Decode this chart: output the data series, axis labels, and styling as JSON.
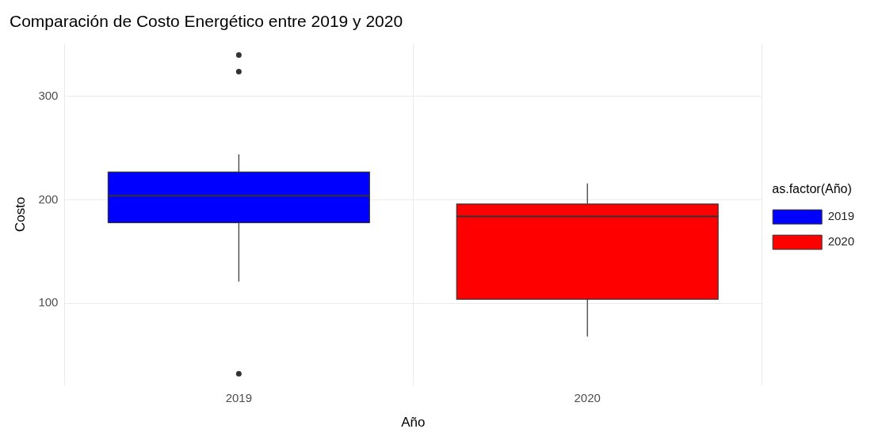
{
  "chart_data": {
    "type": "box",
    "title": "Comparación de Costo Energético entre 2019 y 2020",
    "xlabel": "Año",
    "ylabel": "Costo",
    "legend_title": "as.factor(Año)",
    "categories": [
      "2019",
      "2020"
    ],
    "series": [
      {
        "name": "2019",
        "color": "#0000ff",
        "boxes": [
          {
            "low": 121,
            "q1": 178,
            "median": 204,
            "q3": 227,
            "high": 244,
            "outliers": [
              340,
              324,
              32
            ]
          },
          null
        ]
      },
      {
        "name": "2020",
        "color": "#ff0000",
        "boxes": [
          null,
          {
            "low": 68,
            "q1": 104,
            "median": 184,
            "q3": 196,
            "high": 216
          }
        ]
      }
    ],
    "ylim": [
      21,
      351
    ],
    "yticks": [
      100,
      200,
      300
    ],
    "grid": true,
    "legend": "right"
  }
}
